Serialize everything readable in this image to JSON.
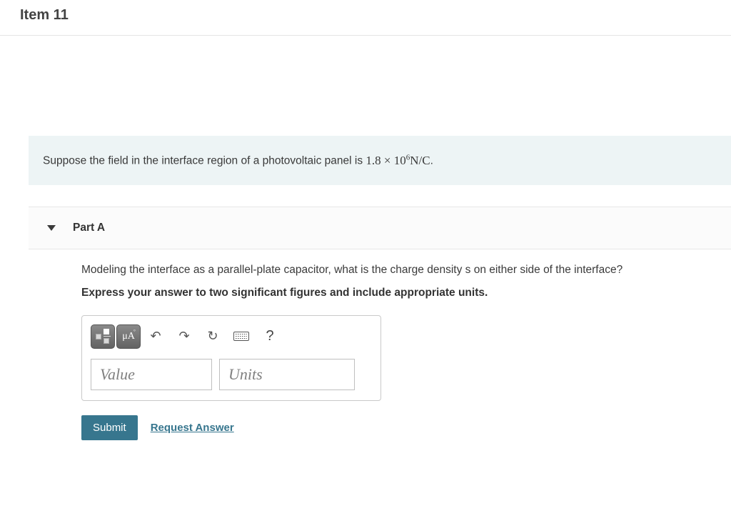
{
  "header": {
    "item_title": "Item 11"
  },
  "intro": {
    "prefix": "Suppose the field in the interface region of a photovoltaic panel is ",
    "value_base": "1.8 × 10",
    "value_exp": "6",
    "value_unit": "N/C",
    "suffix": "."
  },
  "part": {
    "label": "Part A",
    "question": "Modeling the interface as a parallel-plate capacitor, what is the charge density s on either side of the interface?",
    "instruction": "Express your answer to two significant figures and include appropriate units."
  },
  "toolbar": {
    "templates_tip": "templates",
    "symbols_label": "μA",
    "undo_glyph": "↶",
    "redo_glyph": "↷",
    "reset_glyph": "↻",
    "keyboard_tip": "keyboard",
    "help_glyph": "?"
  },
  "inputs": {
    "value_placeholder": "Value",
    "units_placeholder": "Units"
  },
  "actions": {
    "submit_label": "Submit",
    "request_label": "Request Answer"
  },
  "colors": {
    "intro_bg": "#edf4f5",
    "accent": "#37768e",
    "border": "#c9c9c9"
  }
}
